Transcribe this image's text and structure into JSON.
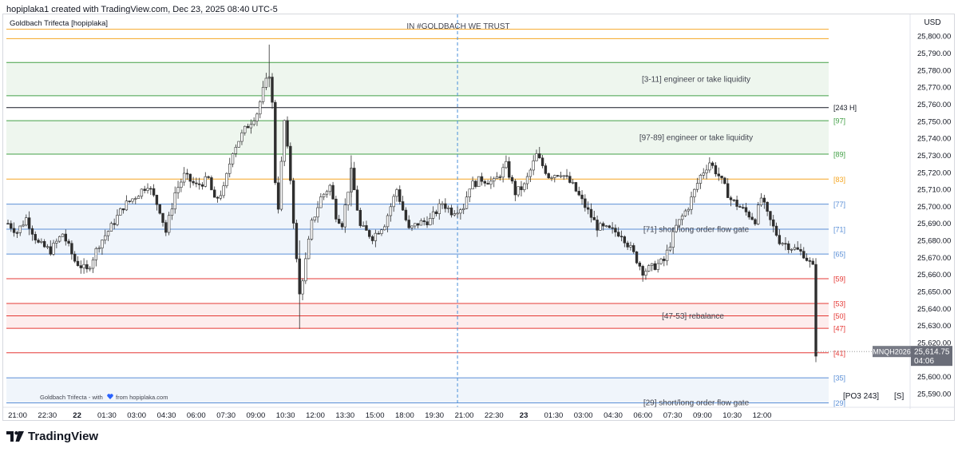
{
  "header": {
    "attribution": "hopiplaka1 created with TradingView.com, Dec 23, 2025 08:40 UTC-5"
  },
  "indicator": {
    "name": "Goldbach Trifecta [hopiplaka]",
    "motto": "IN #GOLDBACH WE TRUST",
    "credit_prefix": "Goldbach Trifecta - with",
    "credit_icon": "blue-heart-icon",
    "credit_suffix": "from hopiplaka.com"
  },
  "axis": {
    "currency": "USD",
    "y_range": [
      25582,
      25809
    ],
    "y_ticks": [
      {
        "value": 25800,
        "label": "25,800.00"
      },
      {
        "value": 25790,
        "label": "25,790.00"
      },
      {
        "value": 25780,
        "label": "25,780.00"
      },
      {
        "value": 25770,
        "label": "25,770.00"
      },
      {
        "value": 25760,
        "label": "25,760.00"
      },
      {
        "value": 25750,
        "label": "25,750.00"
      },
      {
        "value": 25740,
        "label": "25,740.00"
      },
      {
        "value": 25730,
        "label": "25,730.00"
      },
      {
        "value": 25720,
        "label": "25,720.00"
      },
      {
        "value": 25710,
        "label": "25,710.00"
      },
      {
        "value": 25700,
        "label": "25,700.00"
      },
      {
        "value": 25690,
        "label": "25,690.00"
      },
      {
        "value": 25680,
        "label": "25,680.00"
      },
      {
        "value": 25670,
        "label": "25,670.00"
      },
      {
        "value": 25660,
        "label": "25,660.00"
      },
      {
        "value": 25650,
        "label": "25,650.00"
      },
      {
        "value": 25640,
        "label": "25,640.00"
      },
      {
        "value": 25630,
        "label": "25,630.00"
      },
      {
        "value": 25620,
        "label": "25,620.00"
      },
      {
        "value": 25600,
        "label": "25,600.00"
      },
      {
        "value": 25590,
        "label": "25,590.00"
      }
    ],
    "time_labels": [
      {
        "label": "21:00",
        "bold": false
      },
      {
        "label": "22:30",
        "bold": false
      },
      {
        "label": "22",
        "bold": true
      },
      {
        "label": "01:30",
        "bold": false
      },
      {
        "label": "03:00",
        "bold": false
      },
      {
        "label": "04:30",
        "bold": false
      },
      {
        "label": "06:00",
        "bold": false
      },
      {
        "label": "07:30",
        "bold": false
      },
      {
        "label": "09:00",
        "bold": false
      },
      {
        "label": "10:30",
        "bold": false
      },
      {
        "label": "12:00",
        "bold": false
      },
      {
        "label": "13:30",
        "bold": false
      },
      {
        "label": "15:00",
        "bold": false
      },
      {
        "label": "18:00",
        "bold": false
      },
      {
        "label": "19:30",
        "bold": false
      },
      {
        "label": "21:00",
        "bold": false
      },
      {
        "label": "22:30",
        "bold": false
      },
      {
        "label": "23",
        "bold": true
      },
      {
        "label": "01:30",
        "bold": false
      },
      {
        "label": "03:00",
        "bold": false
      },
      {
        "label": "04:30",
        "bold": false
      },
      {
        "label": "06:00",
        "bold": false
      },
      {
        "label": "07:30",
        "bold": false
      },
      {
        "label": "09:00",
        "bold": false
      },
      {
        "label": "10:30",
        "bold": false
      },
      {
        "label": "12:00",
        "bold": false
      }
    ]
  },
  "symbol_badge": {
    "symbol": "MNQH2026",
    "price": "25,614.75",
    "countdown": "04:06"
  },
  "levels": [
    {
      "value": 25804,
      "label": "",
      "color": "#f7a82a"
    },
    {
      "value": 25798.5,
      "label": "",
      "color": "#f5a623"
    },
    {
      "value": 25784.5,
      "label": "",
      "color": "#43a047"
    },
    {
      "value": 25765,
      "label": "",
      "color": "#43a047"
    },
    {
      "value": 25758,
      "label": "[243 H]",
      "color": "#131722"
    },
    {
      "value": 25750.3,
      "label": "[97]",
      "color": "#43a047"
    },
    {
      "value": 25730.7,
      "label": "[89]",
      "color": "#43a047"
    },
    {
      "value": 25716,
      "label": "[83]",
      "color": "#f5a623"
    },
    {
      "value": 25701.3,
      "label": "[77]",
      "color": "#5b8fd6"
    },
    {
      "value": 25686.6,
      "label": "[71]",
      "color": "#5b8fd6"
    },
    {
      "value": 25672,
      "label": "[65]",
      "color": "#5b8fd6"
    },
    {
      "value": 25657.5,
      "label": "[59]",
      "color": "#e53935"
    },
    {
      "value": 25643,
      "label": "[53]",
      "color": "#e53935"
    },
    {
      "value": 25635.7,
      "label": "[50]",
      "color": "#e53935"
    },
    {
      "value": 25628.4,
      "label": "[47]",
      "color": "#e53935"
    },
    {
      "value": 25614,
      "label": "[41]",
      "color": "#e53935"
    },
    {
      "value": 25599.3,
      "label": "[35]",
      "color": "#5b8fd6"
    },
    {
      "value": 25584.6,
      "label": "[29]",
      "color": "#5b8fd6"
    }
  ],
  "zones": [
    {
      "from": 25765,
      "to": 25784.5,
      "label": "[3-11] engineer or take liquidity",
      "color": "#43a047",
      "text_color": "#434651"
    },
    {
      "from": 25730.7,
      "to": 25750.3,
      "label": "[97-89] engineer or take liquidity",
      "color": "#43a047",
      "text_color": "#434651"
    },
    {
      "from": 25672,
      "to": 25701.3,
      "label": "[71] short/long order flow gate",
      "color": "#5b8fd6",
      "text_color": "#434651"
    },
    {
      "from": 25628.4,
      "to": 25643,
      "label": "[47-53] rebalance",
      "color": "#e53935",
      "text_color": "#434651"
    },
    {
      "from": 25584.6,
      "to": 25599.3,
      "label": "[29] short/long order flow gate",
      "color": "#5b8fd6",
      "text_color": "#434651"
    }
  ],
  "po3_label": "[PO3 243]",
  "session_label": "[S]",
  "branding": {
    "logo_icon": "tradingview-logo-icon",
    "name": "TradingView"
  },
  "colors": {
    "up": "#26a69a",
    "down": "#ef5350",
    "candle_body": "#2e2e2e",
    "candle_up_body": "#ffffff",
    "session_line": "#4a90d9"
  },
  "chart_data": {
    "type": "candlestick",
    "title": "",
    "ylabel": "USD",
    "ylim": [
      25582,
      25809
    ],
    "price_path": [
      {
        "t": 0,
        "p": 25690
      },
      {
        "t": 3,
        "p": 25685
      },
      {
        "t": 6,
        "p": 25693
      },
      {
        "t": 10,
        "p": 25678
      },
      {
        "t": 14,
        "p": 25674
      },
      {
        "t": 18,
        "p": 25684
      },
      {
        "t": 22,
        "p": 25668
      },
      {
        "t": 26,
        "p": 25662
      },
      {
        "t": 30,
        "p": 25678
      },
      {
        "t": 34,
        "p": 25688
      },
      {
        "t": 38,
        "p": 25700
      },
      {
        "t": 42,
        "p": 25706
      },
      {
        "t": 46,
        "p": 25713
      },
      {
        "t": 50,
        "p": 25698
      },
      {
        "t": 52,
        "p": 25685
      },
      {
        "t": 55,
        "p": 25708
      },
      {
        "t": 58,
        "p": 25718
      },
      {
        "t": 62,
        "p": 25712
      },
      {
        "t": 66,
        "p": 25716
      },
      {
        "t": 68,
        "p": 25703
      },
      {
        "t": 71,
        "p": 25710
      },
      {
        "t": 74,
        "p": 25733
      },
      {
        "t": 78,
        "p": 25745
      },
      {
        "t": 82,
        "p": 25755
      },
      {
        "t": 84,
        "p": 25768
      },
      {
        "t": 86,
        "p": 25778
      },
      {
        "t": 87,
        "p": 25760
      },
      {
        "t": 88,
        "p": 25715
      },
      {
        "t": 89,
        "p": 25700
      },
      {
        "t": 91,
        "p": 25750
      },
      {
        "t": 93,
        "p": 25716
      },
      {
        "t": 95,
        "p": 25668
      },
      {
        "t": 96,
        "p": 25648
      },
      {
        "t": 98,
        "p": 25668
      },
      {
        "t": 100,
        "p": 25690
      },
      {
        "t": 103,
        "p": 25705
      },
      {
        "t": 106,
        "p": 25712
      },
      {
        "t": 108,
        "p": 25695
      },
      {
        "t": 110,
        "p": 25690
      },
      {
        "t": 113,
        "p": 25720
      },
      {
        "t": 116,
        "p": 25688
      },
      {
        "t": 120,
        "p": 25682
      },
      {
        "t": 124,
        "p": 25690
      },
      {
        "t": 128,
        "p": 25710
      },
      {
        "t": 132,
        "p": 25686
      },
      {
        "t": 135,
        "p": 25690
      },
      {
        "t": 139,
        "p": 25692
      },
      {
        "t": 143,
        "p": 25702
      },
      {
        "t": 146,
        "p": 25697
      },
      {
        "t": 150,
        "p": 25700
      },
      {
        "t": 152,
        "p": 25712
      },
      {
        "t": 156,
        "p": 25716
      },
      {
        "t": 160,
        "p": 25714
      },
      {
        "t": 164,
        "p": 25724
      },
      {
        "t": 167,
        "p": 25708
      },
      {
        "t": 170,
        "p": 25712
      },
      {
        "t": 174,
        "p": 25730
      },
      {
        "t": 178,
        "p": 25718
      },
      {
        "t": 182,
        "p": 25720
      },
      {
        "t": 186,
        "p": 25712
      },
      {
        "t": 190,
        "p": 25700
      },
      {
        "t": 194,
        "p": 25688
      },
      {
        "t": 198,
        "p": 25686
      },
      {
        "t": 202,
        "p": 25684
      },
      {
        "t": 206,
        "p": 25672
      },
      {
        "t": 209,
        "p": 25662
      },
      {
        "t": 212,
        "p": 25664
      },
      {
        "t": 216,
        "p": 25668
      },
      {
        "t": 220,
        "p": 25688
      },
      {
        "t": 224,
        "p": 25700
      },
      {
        "t": 228,
        "p": 25718
      },
      {
        "t": 231,
        "p": 25726
      },
      {
        "t": 234,
        "p": 25718
      },
      {
        "t": 238,
        "p": 25704
      },
      {
        "t": 242,
        "p": 25698
      },
      {
        "t": 246,
        "p": 25692
      },
      {
        "t": 248,
        "p": 25705
      },
      {
        "t": 250,
        "p": 25695
      },
      {
        "t": 254,
        "p": 25680
      },
      {
        "t": 258,
        "p": 25676
      },
      {
        "t": 262,
        "p": 25672
      },
      {
        "t": 265,
        "p": 25664
      },
      {
        "t": 266,
        "p": 25614
      }
    ],
    "current_price": 25614.75
  }
}
